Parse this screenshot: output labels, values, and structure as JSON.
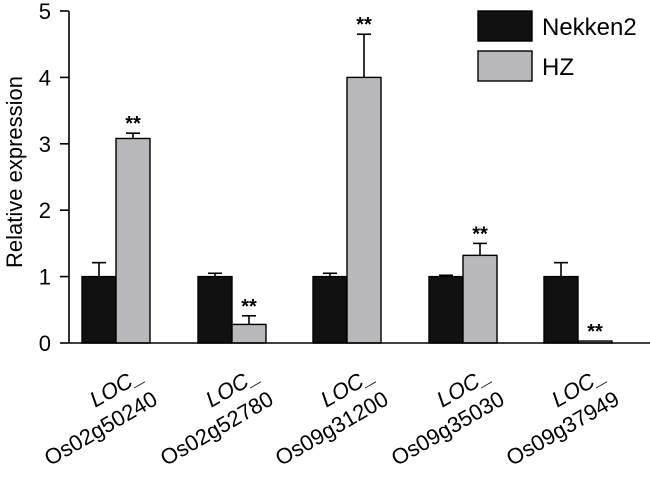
{
  "chart_data": {
    "type": "bar",
    "ylabel": "Relative expression",
    "xlabel": "",
    "ylim": [
      0,
      5
    ],
    "yticks": [
      "0",
      "1",
      "2",
      "3",
      "4",
      "5"
    ],
    "categories": [
      {
        "line1": "LOC_",
        "line2": "Os02g50240"
      },
      {
        "line1": "LOC_",
        "line2": "Os02g52780"
      },
      {
        "line1": "LOC_",
        "line2": "Os09g31200"
      },
      {
        "line1": "LOC_",
        "line2": "Os09g35030"
      },
      {
        "line1": "LOC_",
        "line2": "Os09g37949"
      }
    ],
    "series": [
      {
        "name": "Nekken2",
        "color": "#111111",
        "values": [
          1.0,
          1.0,
          1.0,
          1.0,
          1.0
        ],
        "errors": [
          0.21,
          0.05,
          0.05,
          0.02,
          0.21
        ],
        "significance": [
          "",
          "",
          "",
          "",
          ""
        ]
      },
      {
        "name": "HZ",
        "color": "#b8b8bd",
        "values": [
          3.08,
          0.28,
          4.0,
          1.32,
          0.03
        ],
        "errors": [
          0.08,
          0.13,
          0.65,
          0.18,
          0.0
        ],
        "significance": [
          "**",
          "**",
          "**",
          "**",
          "**"
        ]
      }
    ],
    "legend_position": "top-right",
    "grid": false
  }
}
